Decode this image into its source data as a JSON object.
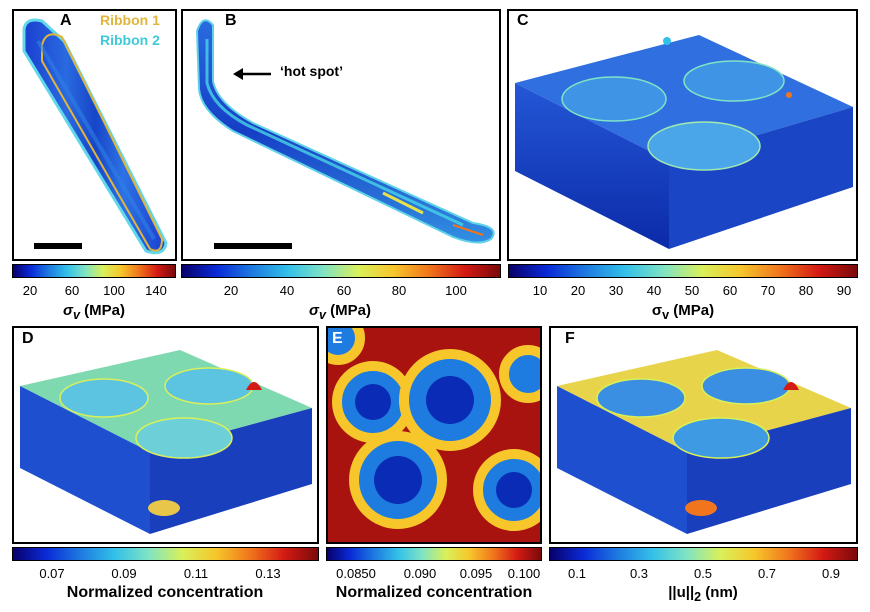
{
  "panels": {
    "a": {
      "label": "A",
      "legend": [
        {
          "text": "Ribbon 1",
          "color": "#e0b63a"
        },
        {
          "text": "Ribbon 2",
          "color": "#3fc9d8"
        }
      ],
      "colorbar": {
        "ticks": [
          "20",
          "60",
          "100",
          "140"
        ],
        "title": "σ",
        "sub": "v",
        "unit": " (MPa)"
      }
    },
    "b": {
      "label": "B",
      "annotation": "‘hot spot’",
      "colorbar": {
        "ticks": [
          "20",
          "40",
          "60",
          "80",
          "100"
        ],
        "title": "σ",
        "sub": "v",
        "unit": " (MPa)"
      }
    },
    "c": {
      "label": "C",
      "colorbar": {
        "ticks": [
          "10",
          "20",
          "30",
          "40",
          "50",
          "60",
          "70",
          "80",
          "90"
        ],
        "title": "σ",
        "sub": "v",
        "unit": " (MPa)"
      }
    },
    "d": {
      "label": "D",
      "colorbar": {
        "ticks": [
          "0.07",
          "0.09",
          "0.11",
          "0.13"
        ],
        "title": "Normalized concentration"
      }
    },
    "e": {
      "label": "E",
      "colorbar": {
        "ticks": [
          "0.0850",
          "0.090",
          "0.095",
          "0.100"
        ],
        "title": "Normalized concentration"
      }
    },
    "f": {
      "label": "F",
      "colorbar": {
        "ticks": [
          "0.1",
          "0.3",
          "0.5",
          "0.7",
          "0.9"
        ],
        "title": "||u||",
        "sub": "2",
        "unit": " (nm)"
      }
    }
  },
  "colors": {
    "deep_blue": "#0a2bb5",
    "cyan": "#33c0e8",
    "yellow": "#e8e24a",
    "red": "#c8161b"
  }
}
